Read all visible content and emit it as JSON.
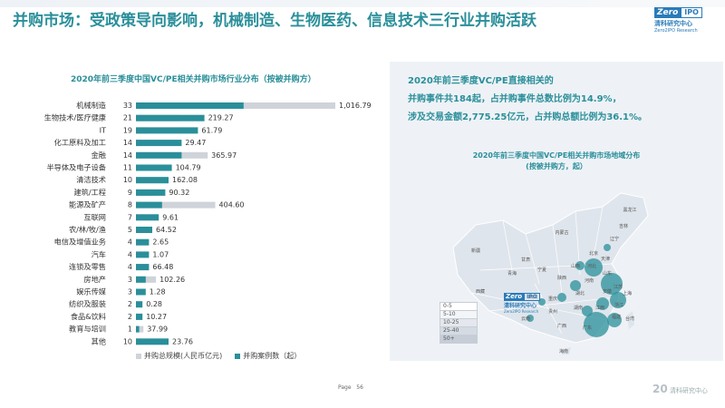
{
  "header": {
    "title": "并购市场：受政策导向影响，机械制造、生物医药、信息技术三行业并购活跃",
    "logo_z": "Zero",
    "logo_ipo": "IPO",
    "logo_cn": "清科研究中心",
    "logo_en": "Zero2IPO Research"
  },
  "left_chart_title": "2020年前三季度中国VC/PE相关并购市场行业分布（按被并购方）",
  "chart_data": {
    "type": "bar",
    "title": "2020年前三季度中国VC/PE相关并购市场行业分布（按被并购方）",
    "categories": [
      "机械制造",
      "生物技术/医疗健康",
      "IT",
      "化工原料及加工",
      "金融",
      "半导体及电子设备",
      "清洁技术",
      "建筑/工程",
      "能源及矿产",
      "互联网",
      "农/林/牧/渔",
      "电信及增值业务",
      "汽车",
      "连锁及零售",
      "房地产",
      "娱乐传媒",
      "纺织及服装",
      "食品&饮料",
      "教育与培训",
      "其他"
    ],
    "series": [
      {
        "name": "并购案例数（起）",
        "color": "#2a8f9a",
        "values": [
          33,
          21,
          19,
          14,
          14,
          11,
          10,
          9,
          8,
          7,
          5,
          4,
          4,
          4,
          3,
          3,
          2,
          2,
          1,
          10
        ]
      },
      {
        "name": "并购总规模(人民币亿元)",
        "color": "#cfd3da",
        "values": [
          1016.79,
          219.27,
          61.79,
          29.47,
          365.97,
          104.79,
          162.08,
          90.32,
          404.6,
          9.61,
          64.52,
          2.65,
          1.07,
          66.48,
          102.26,
          1.28,
          0.28,
          10.27,
          37.99,
          23.76
        ]
      }
    ],
    "value_labels": [
      "1,016.79",
      "219.27",
      "61.79",
      "29.47",
      "365.97",
      "104.79",
      "162.08",
      "90.32",
      "404.60",
      "9.61",
      "64.52",
      "2.65",
      "1.07",
      "66.48",
      "102.26",
      "1.28",
      "0.28",
      "10.27",
      "37.99",
      "23.76"
    ],
    "legend": [
      "并购总规模(人民币亿元)",
      "并购案例数（起）"
    ],
    "legend_position": "bottom"
  },
  "stats": {
    "line1": "2020年前三季度VC/PE直接相关的",
    "line2": "并购事件共184起，占并购事件总数比例为14.9%，",
    "line3": "涉及交易金额2,775.25亿元，占并购总额比例为36.1%。"
  },
  "map_title_1": "2020年前三季度中国VC/PE相关并购市场地域分布",
  "map_title_2": "(按被并购方，起）",
  "map_legend": [
    "0-5",
    "5-10",
    "10-25",
    "25-40",
    "50+"
  ],
  "map_labels": [
    "黑龙江",
    "吉林",
    "辽宁",
    "内蒙古",
    "北京",
    "天津",
    "河北",
    "山西",
    "山东",
    "河南",
    "江苏",
    "上海",
    "安徽",
    "浙江",
    "湖北",
    "江西",
    "福建",
    "湖南",
    "广东",
    "广西",
    "海南",
    "贵州",
    "云南",
    "四川",
    "重庆",
    "陕西",
    "甘肃",
    "宁夏",
    "青海",
    "新疆",
    "西藏",
    "台湾"
  ],
  "colors": {
    "accent": "#2a8f9a",
    "bar_gray": "#cfd3da",
    "panel": "#eef2f6"
  },
  "footer": {
    "page_label": "Page",
    "page_number": "56",
    "logo_text": "清科研究中心"
  }
}
